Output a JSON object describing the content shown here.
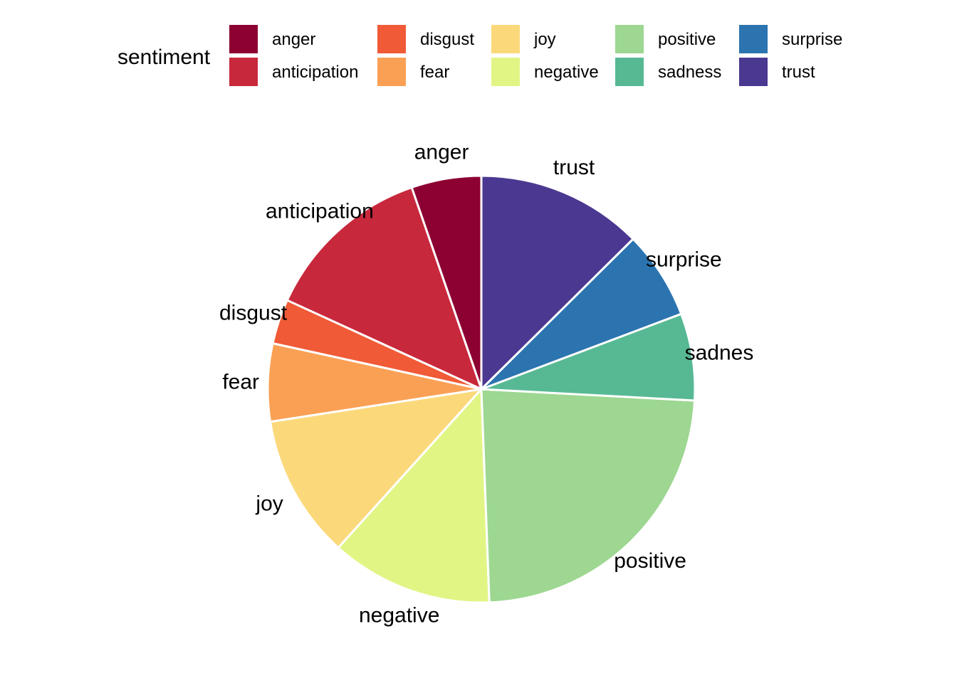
{
  "chart_data": {
    "type": "pie",
    "legend": {
      "title": "sentiment",
      "placement": "top"
    },
    "slices": [
      {
        "category": "anger",
        "legend_label": "anger",
        "slice_label": "anger",
        "value": 5.3,
        "color": "#8C0032"
      },
      {
        "category": "anticipation",
        "legend_label": "anticipation",
        "slice_label": "anticipation",
        "value": 12.9,
        "color": "#C8283C"
      },
      {
        "category": "disgust",
        "legend_label": "disgust",
        "slice_label": "disgust",
        "value": 3.4,
        "color": "#F05A37"
      },
      {
        "category": "fear",
        "legend_label": "fear",
        "slice_label": "fear",
        "value": 5.9,
        "color": "#FAA055"
      },
      {
        "category": "joy",
        "legend_label": "joy",
        "slice_label": "joy",
        "value": 10.9,
        "color": "#FBD97B"
      },
      {
        "category": "negative",
        "legend_label": "negative",
        "slice_label": "negative",
        "value": 12.3,
        "color": "#E1F585"
      },
      {
        "category": "positive",
        "legend_label": "positive",
        "slice_label": "positive",
        "value": 23.6,
        "color": "#9DD791"
      },
      {
        "category": "sadness",
        "legend_label": "sadness",
        "slice_label": "sadnes",
        "value": 6.6,
        "color": "#57B994"
      },
      {
        "category": "surprise",
        "legend_label": "surprise",
        "slice_label": "surprise",
        "value": 6.7,
        "color": "#2B74AF"
      },
      {
        "category": "trust",
        "legend_label": "trust",
        "slice_label": "trust",
        "value": 12.6,
        "color": "#4B3891"
      }
    ]
  }
}
